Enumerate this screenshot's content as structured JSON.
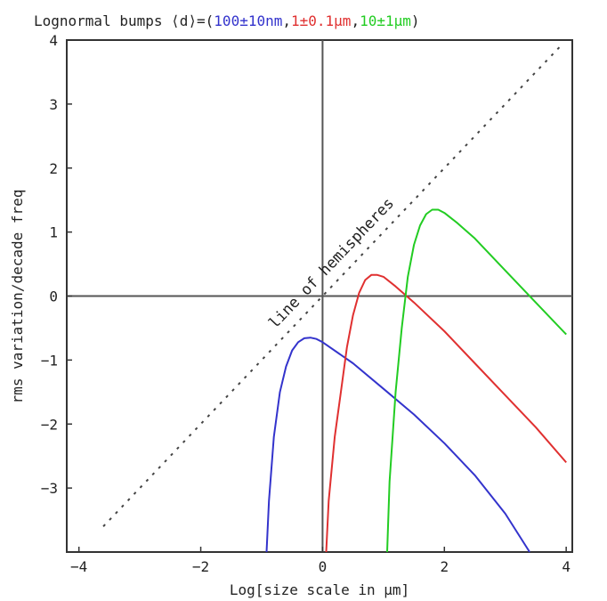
{
  "chart_data": {
    "type": "line",
    "title": {
      "prefix": "Lognormal bumps ⟨d⟩=(",
      "parts": [
        {
          "text": "100±10nm",
          "color": "#3333cc"
        },
        {
          "text": ",",
          "color": "#222222"
        },
        {
          "text": "1±0.1μm",
          "color": "#e03030"
        },
        {
          "text": ",",
          "color": "#222222"
        },
        {
          "text": "10±1μm",
          "color": "#22cc22"
        }
      ],
      "suffix": ")"
    },
    "xlabel": "Log[size scale in μm]",
    "ylabel": "rms variation/decade freq",
    "xlim": [
      -4.2,
      4.1
    ],
    "ylim": [
      -4,
      4
    ],
    "xticks": [
      -4,
      -2,
      0,
      2,
      4
    ],
    "yticks": [
      4,
      3,
      2,
      1,
      0,
      -1,
      -2,
      -3
    ],
    "grid": false,
    "reference_line": {
      "label": "line of hemispheres",
      "style": "dashed",
      "slope": 1,
      "intercept": 0,
      "x": [
        -3.6,
        3.9
      ]
    },
    "series": [
      {
        "color": "#3333cc",
        "x": [
          -0.92,
          -0.88,
          -0.8,
          -0.7,
          -0.6,
          -0.5,
          -0.4,
          -0.3,
          -0.2,
          -0.1,
          0.0,
          0.5,
          1.0,
          1.5,
          2.0,
          2.5,
          3.0,
          3.4
        ],
        "y": [
          -4.0,
          -3.2,
          -2.2,
          -1.5,
          -1.1,
          -0.85,
          -0.72,
          -0.66,
          -0.65,
          -0.67,
          -0.72,
          -1.05,
          -1.45,
          -1.85,
          -2.3,
          -2.8,
          -3.4,
          -4.0
        ]
      },
      {
        "color": "#e03030",
        "x": [
          0.06,
          0.1,
          0.2,
          0.3,
          0.4,
          0.5,
          0.6,
          0.7,
          0.8,
          0.9,
          1.0,
          1.2,
          1.5,
          2.0,
          2.5,
          3.0,
          3.5,
          4.0
        ],
        "y": [
          -4.0,
          -3.2,
          -2.2,
          -1.5,
          -0.8,
          -0.3,
          0.05,
          0.25,
          0.33,
          0.33,
          0.3,
          0.15,
          -0.1,
          -0.55,
          -1.05,
          -1.55,
          -2.05,
          -2.6
        ]
      },
      {
        "color": "#22cc22",
        "x": [
          1.06,
          1.1,
          1.2,
          1.3,
          1.4,
          1.5,
          1.6,
          1.7,
          1.8,
          1.9,
          2.0,
          2.2,
          2.5,
          3.0,
          3.5,
          4.0
        ],
        "y": [
          -4.0,
          -2.9,
          -1.5,
          -0.5,
          0.3,
          0.8,
          1.1,
          1.28,
          1.35,
          1.35,
          1.3,
          1.15,
          0.9,
          0.4,
          -0.1,
          -0.6
        ]
      }
    ]
  }
}
